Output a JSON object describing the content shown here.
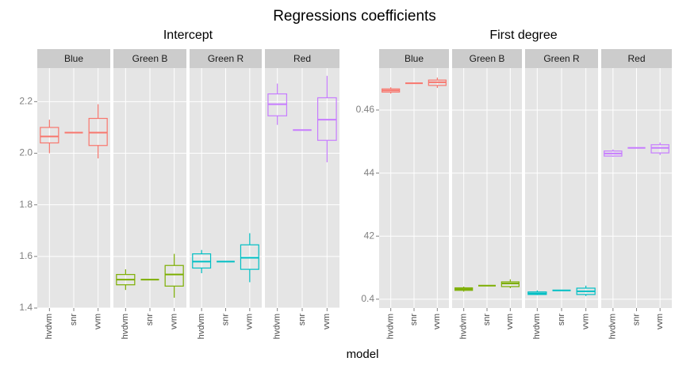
{
  "chart_data": {
    "type": "box",
    "title": "Regressions coefficients",
    "xlabel": "model",
    "categories": [
      "hvdvm",
      "snr",
      "vvm"
    ],
    "panels": [
      {
        "title": "Intercept",
        "ylim": [
          1.4,
          2.33
        ],
        "yticks": [
          1.4,
          1.6,
          1.8,
          {
            "value": 2.0,
            "label": "2.0"
          },
          2.2
        ],
        "facets": [
          {
            "name": "Blue",
            "color": "#F8766D",
            "boxes": [
              {
                "min": 2.0,
                "q1": 2.04,
                "median": 2.065,
                "q3": 2.1,
                "max": 2.13
              },
              {
                "min": 2.08,
                "q1": 2.08,
                "median": 2.08,
                "q3": 2.08,
                "max": 2.08
              },
              {
                "min": 1.98,
                "q1": 2.03,
                "median": 2.08,
                "q3": 2.135,
                "max": 2.19
              }
            ]
          },
          {
            "name": "Green B",
            "color": "#7CAE00",
            "boxes": [
              {
                "min": 1.47,
                "q1": 1.49,
                "median": 1.51,
                "q3": 1.53,
                "max": 1.55
              },
              {
                "min": 1.51,
                "q1": 1.51,
                "median": 1.51,
                "q3": 1.51,
                "max": 1.51
              },
              {
                "min": 1.44,
                "q1": 1.485,
                "median": 1.53,
                "q3": 1.565,
                "max": 1.61
              }
            ]
          },
          {
            "name": "Green R",
            "color": "#00BFC4",
            "boxes": [
              {
                "min": 1.535,
                "q1": 1.555,
                "median": 1.58,
                "q3": 1.61,
                "max": 1.625
              },
              {
                "min": 1.58,
                "q1": 1.58,
                "median": 1.58,
                "q3": 1.58,
                "max": 1.58
              },
              {
                "min": 1.5,
                "q1": 1.55,
                "median": 1.595,
                "q3": 1.645,
                "max": 1.69
              }
            ]
          },
          {
            "name": "Red",
            "color": "#C77CFF",
            "boxes": [
              {
                "min": 2.11,
                "q1": 2.145,
                "median": 2.19,
                "q3": 2.23,
                "max": 2.27
              },
              {
                "min": 2.09,
                "q1": 2.09,
                "median": 2.09,
                "q3": 2.09,
                "max": 2.09
              },
              {
                "min": 1.965,
                "q1": 2.05,
                "median": 2.13,
                "q3": 2.215,
                "max": 2.3
              }
            ]
          }
        ]
      },
      {
        "title": "First degree",
        "ylim": [
          0.3972,
          0.4733
        ],
        "yticks": [
          0.4,
          {
            "value": 0.42,
            "label": "42"
          },
          {
            "value": 0.44,
            "label": "44"
          },
          0.46
        ],
        "facets": [
          {
            "name": "Blue",
            "color": "#F8766D",
            "boxes": [
              {
                "min": 0.4652,
                "q1": 0.4657,
                "median": 0.4662,
                "q3": 0.4667,
                "max": 0.4672
              },
              {
                "min": 0.4685,
                "q1": 0.4685,
                "median": 0.4685,
                "q3": 0.4685,
                "max": 0.4685
              },
              {
                "min": 0.467,
                "q1": 0.4678,
                "median": 0.4688,
                "q3": 0.4695,
                "max": 0.4703
              }
            ]
          },
          {
            "name": "Green B",
            "color": "#7CAE00",
            "boxes": [
              {
                "min": 0.4024,
                "q1": 0.4028,
                "median": 0.4032,
                "q3": 0.4036,
                "max": 0.404
              },
              {
                "min": 0.4043,
                "q1": 0.4043,
                "median": 0.4043,
                "q3": 0.4043,
                "max": 0.4043
              },
              {
                "min": 0.4035,
                "q1": 0.404,
                "median": 0.405,
                "q3": 0.4055,
                "max": 0.4063
              }
            ]
          },
          {
            "name": "Green R",
            "color": "#00BFC4",
            "boxes": [
              {
                "min": 0.4013,
                "q1": 0.4015,
                "median": 0.4018,
                "q3": 0.4023,
                "max": 0.4028
              },
              {
                "min": 0.4028,
                "q1": 0.4028,
                "median": 0.4028,
                "q3": 0.4028,
                "max": 0.4028
              },
              {
                "min": 0.401,
                "q1": 0.4015,
                "median": 0.4025,
                "q3": 0.4035,
                "max": 0.4043
              }
            ]
          },
          {
            "name": "Red",
            "color": "#C77CFF",
            "boxes": [
              {
                "min": 0.4452,
                "q1": 0.4454,
                "median": 0.4462,
                "q3": 0.447,
                "max": 0.4475
              },
              {
                "min": 0.448,
                "q1": 0.448,
                "median": 0.448,
                "q3": 0.448,
                "max": 0.448
              },
              {
                "min": 0.4457,
                "q1": 0.4464,
                "median": 0.448,
                "q3": 0.449,
                "max": 0.4497
              }
            ]
          }
        ]
      }
    ]
  }
}
